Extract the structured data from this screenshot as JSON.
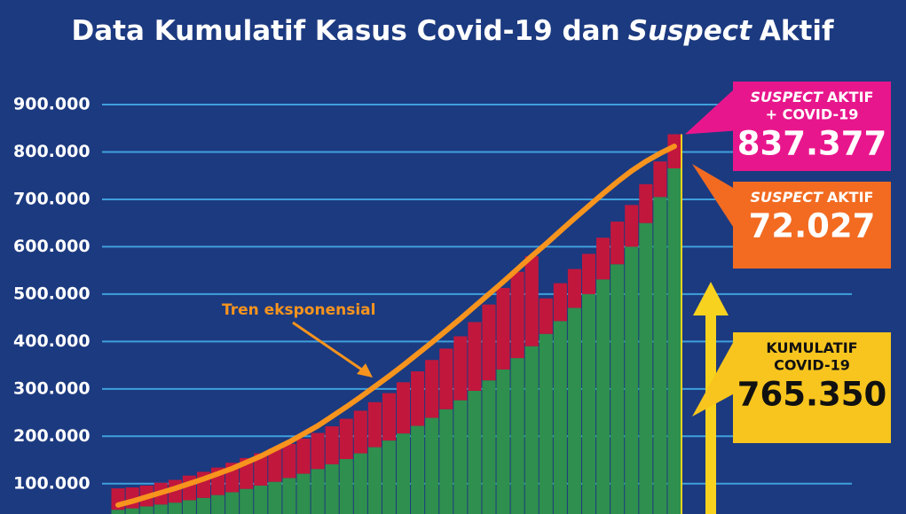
{
  "chart_data": {
    "type": "stacked_bar",
    "title": [
      "Data Kumulatif Kasus Covid-19 dan",
      "Suspect",
      "Aktif"
    ],
    "categories": [
      null,
      null,
      null,
      null,
      null,
      null,
      null,
      null,
      null,
      null,
      null,
      null,
      null,
      null,
      null,
      null,
      null,
      null,
      null,
      null,
      null,
      null,
      null,
      null,
      null,
      null,
      null,
      null,
      null,
      null,
      null,
      null,
      null,
      null,
      null,
      null,
      null,
      null,
      null,
      null
    ],
    "series": [
      {
        "color": "#2f8f4e",
        "values": [
          45000,
          48000,
          52000,
          56000,
          60000,
          65000,
          70000,
          76000,
          82000,
          89000,
          96000,
          104000,
          112000,
          121000,
          131000,
          141000,
          152000,
          164000,
          177000,
          191000,
          206000,
          222000,
          239000,
          257000,
          276000,
          296000,
          318000,
          341000,
          365000,
          390000,
          416000,
          443000,
          471000,
          500000,
          531000,
          563000,
          600000,
          650000,
          705000,
          765350
        ]
      },
      {
        "color": "#c2173d",
        "values": [
          45000,
          44000,
          44000,
          46000,
          48000,
          52000,
          55000,
          58000,
          62000,
          65000,
          68000,
          70000,
          72000,
          74000,
          76000,
          80000,
          85000,
          90000,
          95000,
          100000,
          108000,
          115000,
          122000,
          128000,
          135000,
          145000,
          160000,
          172000,
          182000,
          190000,
          75000,
          80000,
          82000,
          85000,
          88000,
          90000,
          88000,
          82000,
          75000,
          72027
        ]
      }
    ],
    "trend": {
      "label": "Tren eksponensial",
      "color": "#f7941d",
      "values": [
        55000,
        63000,
        72000,
        81000,
        90000,
        100000,
        110000,
        121000,
        132000,
        145000,
        158000,
        173000,
        188000,
        205000,
        222000,
        242000,
        262000,
        283000,
        305000,
        327000,
        350000,
        374000,
        398000,
        423000,
        448000,
        474000,
        500000,
        526000,
        553000,
        580000,
        606000,
        633000,
        660000,
        686000,
        712000,
        737000,
        760000,
        780000,
        797000,
        812000
      ]
    },
    "ylim": [
      36000,
      900000
    ],
    "yticks": [
      {
        "value": 100000,
        "label": "100.000"
      },
      {
        "value": 200000,
        "label": "200.000"
      },
      {
        "value": 300000,
        "label": "300.000"
      },
      {
        "value": 400000,
        "label": "400.000"
      },
      {
        "value": 500000,
        "label": "500.000"
      },
      {
        "value": 600000,
        "label": "600.000"
      },
      {
        "value": 700000,
        "label": "700.000"
      },
      {
        "value": 800000,
        "label": "800.000"
      },
      {
        "value": 900000,
        "label": "900.000"
      }
    ],
    "grid": true,
    "grid_color": "#3fa0dc",
    "callouts": [
      {
        "title_em": "SUSPECT",
        "title": "AKTIF",
        "subtitle": "+ COVID-19",
        "value": 837377,
        "value_label": "837.377",
        "color": "#e8168c"
      },
      {
        "title_em": "SUSPECT",
        "title": "AKTIF",
        "value": 72027,
        "value_label": "72.027",
        "color": "#f26b21"
      },
      {
        "title": "KUMULATIF",
        "subtitle": "COVID-19",
        "value": 765350,
        "value_label": "765.350",
        "color": "#f7c51e"
      }
    ]
  }
}
